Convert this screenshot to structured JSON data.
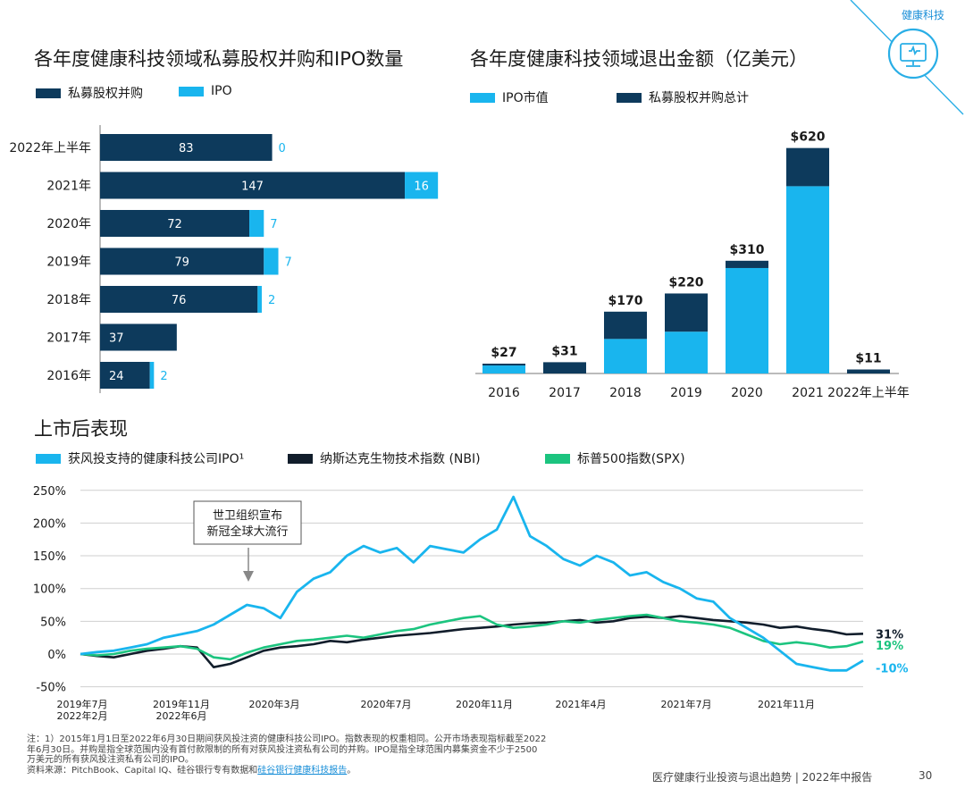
{
  "corner": {
    "label": "健康科技",
    "icon": "health-monitor-icon"
  },
  "colors": {
    "navy": "#0d3a5c",
    "cyan": "#19b5ee",
    "green": "#1cc47f",
    "dark": "#111d2b",
    "text": "#1a1a1a",
    "corner_line": "#29aee6"
  },
  "left_chart": {
    "title": "各年度健康科技领域私募股权并购和IPO数量",
    "legend": [
      "私募股权并购",
      "IPO"
    ]
  },
  "right_chart": {
    "title": "各年度健康科技领域退出金额（亿美元）",
    "legend": [
      "IPO市值",
      "私募股权并购总计"
    ]
  },
  "bottom_chart": {
    "title": "上市后表现",
    "legend": [
      "获风投支持的健康科技公司IPO¹",
      "纳斯达克生物技术指数 (NBI)",
      "标普500指数(SPX)"
    ],
    "annotation": [
      "世卫组织宣布",
      "新冠全球大流行"
    ],
    "end_labels": [
      "31%",
      "19%",
      "-10%"
    ]
  },
  "chart_data": [
    {
      "type": "bar",
      "orientation": "horizontal",
      "stacked": true,
      "title": "各年度健康科技领域私募股权并购和IPO数量",
      "categories": [
        "2022年上半年",
        "2021年",
        "2020年",
        "2019年",
        "2018年",
        "2017年",
        "2016年"
      ],
      "series": [
        {
          "name": "私募股权并购",
          "values": [
            83,
            147,
            72,
            79,
            76,
            37,
            24
          ]
        },
        {
          "name": "IPO",
          "values": [
            0,
            16,
            7,
            7,
            2,
            null,
            2
          ]
        }
      ]
    },
    {
      "type": "bar",
      "stacked": true,
      "title": "各年度健康科技领域退出金额（亿美元）",
      "categories": [
        "2016",
        "2017",
        "2018",
        "2019",
        "2020",
        "2021",
        "2022年上半年"
      ],
      "totals": [
        27,
        31,
        170,
        220,
        310,
        620,
        11
      ],
      "total_labels": [
        "$27",
        "$31",
        "$170",
        "$220",
        "$310",
        "$620",
        "$11"
      ],
      "series": [
        {
          "name": "IPO市值",
          "values": [
            22,
            0,
            95,
            115,
            290,
            515,
            0
          ]
        },
        {
          "name": "私募股权并购总计",
          "values": [
            5,
            31,
            75,
            105,
            20,
            105,
            11
          ]
        }
      ]
    },
    {
      "type": "line",
      "title": "上市后表现",
      "x_ticks": [
        "2019年7月\n2022年2月",
        "2019年11月\n2022年6月",
        "2020年3月",
        "2020年7月",
        "2020年11月",
        "2021年4月",
        "2021年7月",
        "2021年11月"
      ],
      "y_ticks": [
        "250%",
        "200%",
        "150%",
        "100%",
        "50%",
        "0%",
        "-50%"
      ],
      "ylim": [
        -50,
        250
      ],
      "grid": true,
      "series": [
        {
          "name": "获风投支持的健康科技公司IPO¹",
          "final": -10,
          "values": [
            0,
            3,
            5,
            10,
            15,
            25,
            30,
            35,
            45,
            60,
            75,
            70,
            55,
            95,
            115,
            125,
            150,
            165,
            155,
            162,
            140,
            165,
            160,
            155,
            175,
            190,
            240,
            180,
            165,
            145,
            135,
            150,
            140,
            120,
            125,
            110,
            100,
            85,
            80,
            55,
            40,
            25,
            5,
            -15,
            -20,
            -25,
            -25,
            -10
          ]
        },
        {
          "name": "纳斯达克生物技术指数 (NBI)",
          "final": 31,
          "values": [
            0,
            -3,
            -5,
            0,
            5,
            8,
            12,
            10,
            -20,
            -15,
            -5,
            5,
            10,
            12,
            15,
            20,
            18,
            22,
            25,
            28,
            30,
            32,
            35,
            38,
            40,
            42,
            45,
            47,
            48,
            50,
            52,
            48,
            50,
            55,
            57,
            55,
            58,
            55,
            52,
            50,
            48,
            45,
            40,
            42,
            38,
            35,
            30,
            31
          ]
        },
        {
          "name": "标普500指数(SPX)",
          "final": 19,
          "values": [
            0,
            -2,
            0,
            5,
            8,
            10,
            12,
            8,
            -5,
            -8,
            2,
            10,
            15,
            20,
            22,
            25,
            28,
            25,
            30,
            35,
            38,
            45,
            50,
            55,
            58,
            45,
            40,
            42,
            45,
            50,
            48,
            52,
            55,
            58,
            60,
            55,
            50,
            48,
            45,
            40,
            30,
            20,
            15,
            18,
            15,
            10,
            12,
            19
          ]
        }
      ]
    }
  ],
  "footer": {
    "notes": [
      "注：1）2015年1月1日至2022年6月30日期间获风投注资的健康科技公司IPO。指数表现的权重相同。公开市场表现指标截至2022",
      "年6月30日。并购是指全球范围内没有首付款限制的所有对获风投注资私有公司的并购。IPO是指全球范围内募集资金不少于2500",
      "万美元的所有获风投注资私有公司的IPO。"
    ],
    "source_prefix": "资料来源：PitchBook、Capital IQ、硅谷银行专有数据和",
    "source_link": "硅谷银行健康科技报告",
    "source_suffix": "。",
    "report": "医疗健康行业投资与退出趋势 | 2022年中报告",
    "page": "30"
  }
}
